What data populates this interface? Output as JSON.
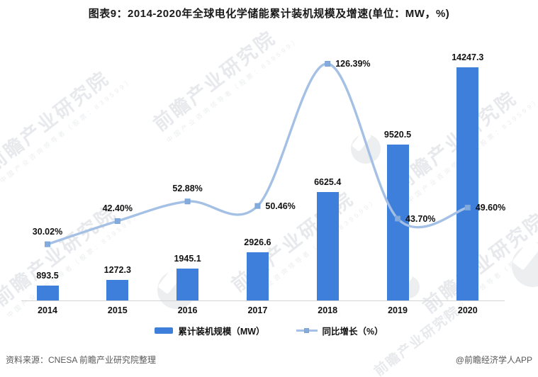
{
  "title": "图表9：2014-2020年全球电化学储能累计装机规模及增速(单位：MW，%)",
  "chart_data": {
    "type": "bar",
    "subtype": "bar+line combo, dual axis, smooth spline line",
    "categories": [
      "2014",
      "2015",
      "2016",
      "2017",
      "2018",
      "2019",
      "2020"
    ],
    "series": [
      {
        "name": "累计装机规模（MW）",
        "type": "bar",
        "values": [
          893.5,
          1272.3,
          1945.1,
          2926.6,
          6625.4,
          9520.5,
          14247.3
        ],
        "labels": [
          "893.5",
          "1272.3",
          "1945.1",
          "2926.6",
          "6625.4",
          "9520.5",
          "14247.3"
        ],
        "color": "#3e7fdb",
        "axis": "left",
        "ylim": [
          0,
          14800
        ]
      },
      {
        "name": "同比增长（%）",
        "type": "line",
        "values": [
          30.02,
          42.4,
          52.88,
          50.46,
          126.39,
          43.7,
          49.6
        ],
        "labels": [
          "30.02%",
          "42.40%",
          "52.88%",
          "50.46%",
          "126.39%",
          "43.70%",
          "49.60%"
        ],
        "label_placement": [
          "above",
          "above",
          "above",
          "right",
          "right",
          "right",
          "right"
        ],
        "color": "#a4c0e5",
        "marker_color": "#85abdc",
        "marker_border": "#79a5db",
        "axis": "right",
        "ylim": [
          0,
          128
        ]
      }
    ],
    "xlabel": "",
    "ylabel_left": "",
    "ylabel_right": "",
    "axes_tick_labels_visible": false,
    "grid": false,
    "legend_position": "bottom",
    "axis_line_color": "#d4d4d4",
    "text_color": "#111111"
  },
  "legend": {
    "items": [
      {
        "label": "累计装机规模（MW）",
        "swatch": "bar"
      },
      {
        "label": "同比增长（%）",
        "swatch": "line"
      }
    ]
  },
  "footer": {
    "source": "资料来源：CNESA 前瞻产业研究院整理",
    "credit": "@前瞻经济学人APP"
  },
  "watermark": {
    "text": "前瞻产业研究院",
    "subtext": "中国产业咨询领导者（股票：839599）",
    "color": "#e7e9ec"
  }
}
